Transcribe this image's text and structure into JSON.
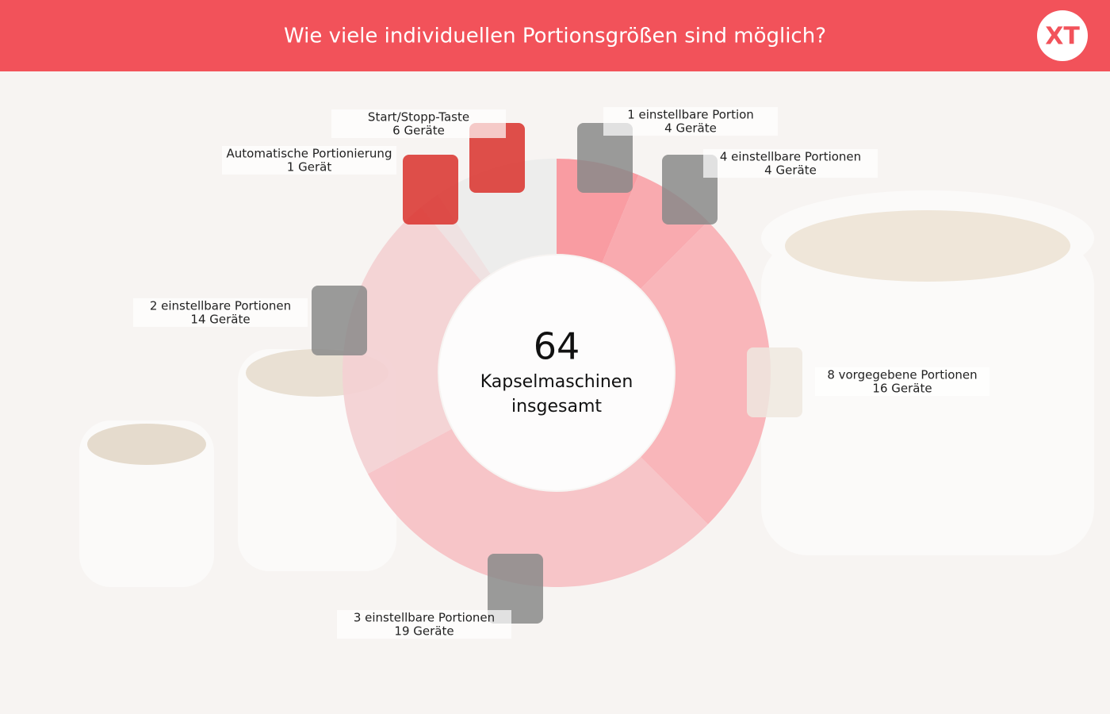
{
  "chart_data": {
    "type": "donut",
    "title": "Wie viele individuellen Portionsgrößen sind möglich?",
    "logo": "XT",
    "total": 64,
    "center_label": [
      "Kapselmaschinen",
      "insgesamt"
    ],
    "categories": [
      "1 einstellbare Portion",
      "4 einstellbare Portionen",
      "8 vorgegebene Portionen",
      "3 einstellbare Portionen",
      "2 einstellbare Portionen",
      "Automatische Portionierung",
      "Start/Stopp-Taste"
    ],
    "values": [
      4,
      4,
      16,
      19,
      14,
      1,
      6
    ],
    "value_labels": [
      "4 Geräte",
      "4 Geräte",
      "16 Geräte",
      "19 Geräte",
      "14 Geräte",
      "1 Gerät",
      "6 Geräte"
    ],
    "colors": [
      "#f9949b",
      "#f8a3a9",
      "#f8b0b5",
      "#f6c0c4",
      "#f3d0d3",
      "#eedfe1",
      "#ebebeb"
    ]
  }
}
